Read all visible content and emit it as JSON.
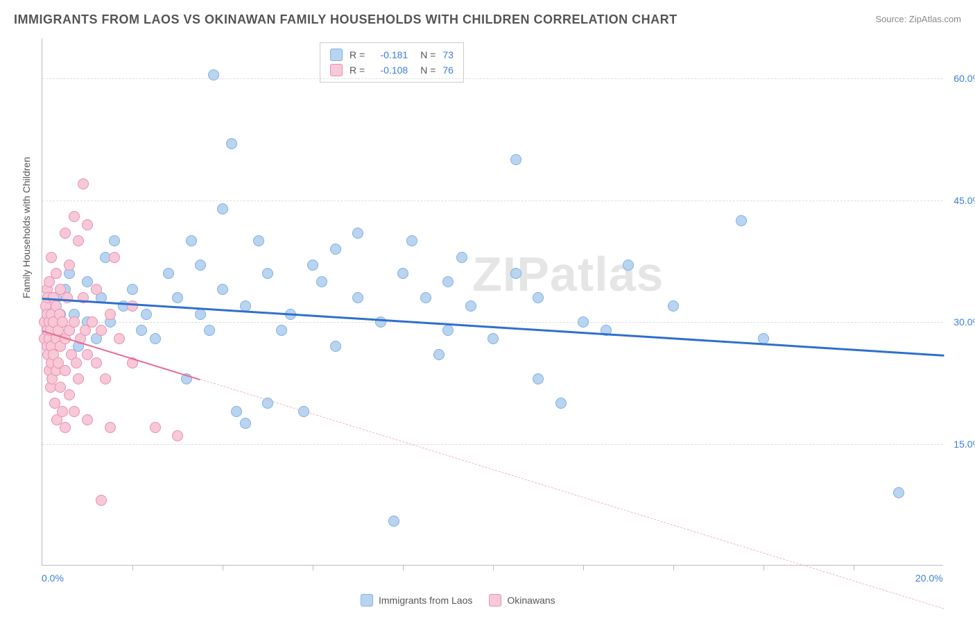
{
  "title": "IMMIGRANTS FROM LAOS VS OKINAWAN FAMILY HOUSEHOLDS WITH CHILDREN CORRELATION CHART",
  "source": "Source: ZipAtlas.com",
  "ylabel": "Family Households with Children",
  "watermark": "ZIPatlas",
  "chart": {
    "type": "scatter",
    "xlim": [
      0,
      20
    ],
    "ylim": [
      0,
      65
    ],
    "x_ticks": [
      0,
      20
    ],
    "x_tick_labels": [
      "0.0%",
      "20.0%"
    ],
    "x_minor_ticks": [
      2,
      4,
      6,
      8,
      10,
      12,
      14,
      16,
      18
    ],
    "y_ticks": [
      15,
      30,
      45,
      60
    ],
    "y_tick_labels": [
      "15.0%",
      "30.0%",
      "45.0%",
      "60.0%"
    ],
    "y_tick_color": "#3b7dd8",
    "x_tick_color": "#3b7dd8",
    "background_color": "#ffffff",
    "grid_color": "#dddddd",
    "marker_size": 16,
    "series": [
      {
        "name": "Immigrants from Laos",
        "color_fill": "#b9d4f0",
        "color_stroke": "#7fb1e3",
        "R": "-0.181",
        "N": "73",
        "trend": {
          "x1": 0,
          "y1": 33,
          "x2": 20,
          "y2": 26,
          "color": "#2f6fd0",
          "width": 3,
          "dashed": false,
          "extrapolate_from": 20
        },
        "points": [
          [
            0.2,
            30
          ],
          [
            0.3,
            33
          ],
          [
            0.4,
            28
          ],
          [
            0.4,
            31
          ],
          [
            0.5,
            34
          ],
          [
            0.6,
            29
          ],
          [
            0.6,
            36
          ],
          [
            0.7,
            31
          ],
          [
            0.8,
            27
          ],
          [
            1.0,
            35
          ],
          [
            1.0,
            30
          ],
          [
            1.2,
            28
          ],
          [
            1.3,
            33
          ],
          [
            1.4,
            38
          ],
          [
            1.5,
            30
          ],
          [
            1.6,
            40
          ],
          [
            1.8,
            32
          ],
          [
            2.0,
            34
          ],
          [
            2.2,
            29
          ],
          [
            2.3,
            31
          ],
          [
            2.5,
            28
          ],
          [
            2.8,
            36
          ],
          [
            3.0,
            33
          ],
          [
            3.2,
            23
          ],
          [
            3.3,
            40
          ],
          [
            3.5,
            31
          ],
          [
            3.5,
            37
          ],
          [
            3.7,
            29
          ],
          [
            3.8,
            60.5
          ],
          [
            4.0,
            34
          ],
          [
            4.0,
            44
          ],
          [
            4.2,
            52
          ],
          [
            4.3,
            19
          ],
          [
            4.5,
            17.5
          ],
          [
            4.5,
            32
          ],
          [
            4.8,
            40
          ],
          [
            5.0,
            20
          ],
          [
            5.0,
            36
          ],
          [
            5.3,
            29
          ],
          [
            5.5,
            31
          ],
          [
            5.8,
            19
          ],
          [
            6.0,
            37
          ],
          [
            6.2,
            35
          ],
          [
            6.5,
            27
          ],
          [
            6.5,
            39
          ],
          [
            7.0,
            33
          ],
          [
            7.0,
            41
          ],
          [
            7.5,
            30
          ],
          [
            7.8,
            5.5
          ],
          [
            8.0,
            36
          ],
          [
            8.2,
            40
          ],
          [
            8.5,
            33
          ],
          [
            8.8,
            26
          ],
          [
            9.0,
            35
          ],
          [
            9.0,
            29
          ],
          [
            9.3,
            38
          ],
          [
            9.5,
            32
          ],
          [
            10.0,
            28
          ],
          [
            10.5,
            36
          ],
          [
            10.5,
            50
          ],
          [
            11.0,
            23
          ],
          [
            11.0,
            33
          ],
          [
            11.5,
            20
          ],
          [
            12.0,
            30
          ],
          [
            12.5,
            29
          ],
          [
            13.0,
            37
          ],
          [
            14.0,
            32
          ],
          [
            15.5,
            42.5
          ],
          [
            16.0,
            28
          ],
          [
            19.0,
            9
          ]
        ]
      },
      {
        "name": "Okinawans",
        "color_fill": "#f7c8d6",
        "color_stroke": "#e98fb0",
        "R": "-0.108",
        "N": "76",
        "trend": {
          "x1": 0,
          "y1": 29,
          "x2": 3.5,
          "y2": 23,
          "color": "#e86a92",
          "width": 2,
          "dashed": false,
          "extrapolate_from": 3.5,
          "dash_color": "#f0b4c5"
        },
        "points": [
          [
            0.05,
            28
          ],
          [
            0.05,
            30
          ],
          [
            0.08,
            32
          ],
          [
            0.1,
            27
          ],
          [
            0.1,
            29
          ],
          [
            0.1,
            31
          ],
          [
            0.1,
            34
          ],
          [
            0.12,
            26
          ],
          [
            0.12,
            33
          ],
          [
            0.15,
            24
          ],
          [
            0.15,
            28
          ],
          [
            0.15,
            30
          ],
          [
            0.15,
            35
          ],
          [
            0.18,
            22
          ],
          [
            0.18,
            29
          ],
          [
            0.2,
            25
          ],
          [
            0.2,
            27
          ],
          [
            0.2,
            31
          ],
          [
            0.2,
            38
          ],
          [
            0.22,
            23
          ],
          [
            0.25,
            26
          ],
          [
            0.25,
            30
          ],
          [
            0.25,
            33
          ],
          [
            0.28,
            20
          ],
          [
            0.3,
            24
          ],
          [
            0.3,
            28
          ],
          [
            0.3,
            32
          ],
          [
            0.3,
            36
          ],
          [
            0.32,
            18
          ],
          [
            0.35,
            25
          ],
          [
            0.35,
            29
          ],
          [
            0.38,
            31
          ],
          [
            0.4,
            22
          ],
          [
            0.4,
            27
          ],
          [
            0.4,
            34
          ],
          [
            0.45,
            19
          ],
          [
            0.45,
            30
          ],
          [
            0.5,
            17
          ],
          [
            0.5,
            24
          ],
          [
            0.5,
            28
          ],
          [
            0.5,
            41
          ],
          [
            0.55,
            33
          ],
          [
            0.6,
            21
          ],
          [
            0.6,
            29
          ],
          [
            0.6,
            37
          ],
          [
            0.65,
            26
          ],
          [
            0.7,
            19
          ],
          [
            0.7,
            30
          ],
          [
            0.7,
            43
          ],
          [
            0.75,
            25
          ],
          [
            0.8,
            23
          ],
          [
            0.8,
            40
          ],
          [
            0.85,
            28
          ],
          [
            0.9,
            33
          ],
          [
            0.9,
            47
          ],
          [
            0.95,
            29
          ],
          [
            1.0,
            18
          ],
          [
            1.0,
            26
          ],
          [
            1.0,
            42
          ],
          [
            1.1,
            30
          ],
          [
            1.2,
            25
          ],
          [
            1.2,
            34
          ],
          [
            1.3,
            8
          ],
          [
            1.3,
            29
          ],
          [
            1.4,
            23
          ],
          [
            1.5,
            17
          ],
          [
            1.5,
            31
          ],
          [
            1.6,
            38
          ],
          [
            1.7,
            28
          ],
          [
            2.0,
            25
          ],
          [
            2.0,
            32
          ],
          [
            2.5,
            17
          ],
          [
            3.0,
            16
          ]
        ]
      }
    ]
  },
  "legend_top": {
    "R_label": "R =",
    "N_label": "N ="
  },
  "legend_bottom": {
    "items": [
      "Immigrants from Laos",
      "Okinawans"
    ]
  }
}
